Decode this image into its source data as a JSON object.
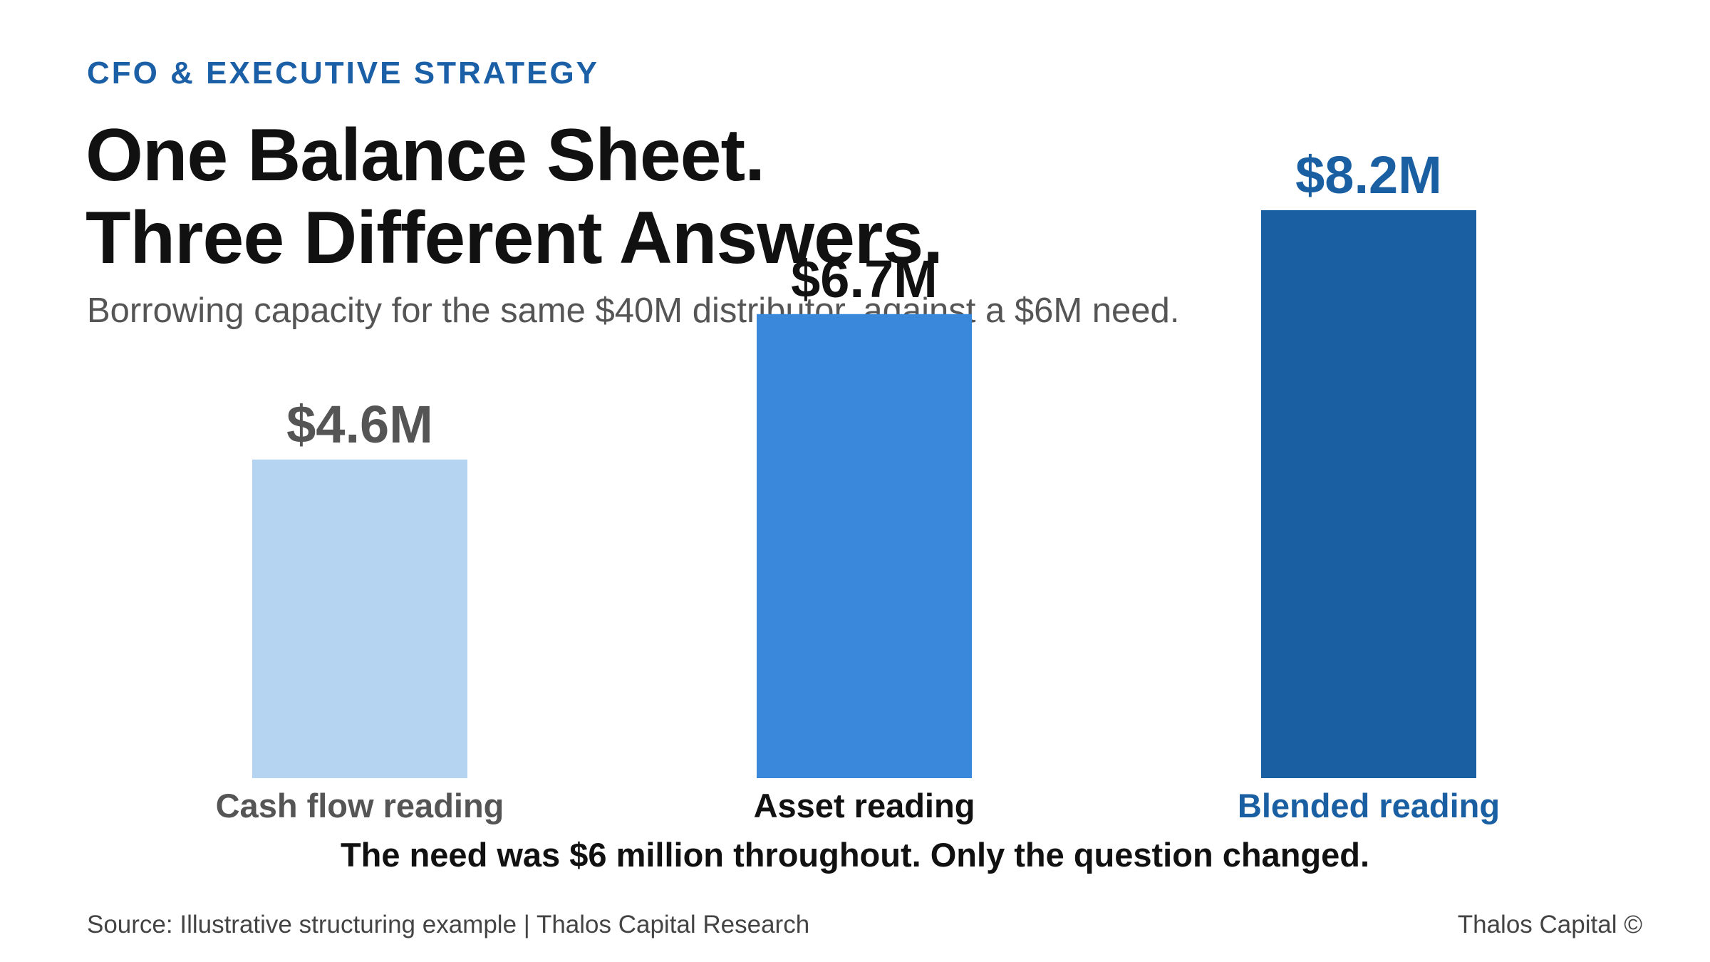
{
  "header": {
    "eyebrow": "CFO & EXECUTIVE STRATEGY",
    "title_line1": "One Balance Sheet.",
    "title_line2": "Three Different Answers.",
    "subtitle": "Borrowing capacity for the same $40M distributor, against a $6M need."
  },
  "chart_data": {
    "type": "bar",
    "title": "One Balance Sheet. Three Different Answers.",
    "subtitle": "Borrowing capacity for the same $40M distributor, against a $6M need.",
    "categories": [
      "Cash flow reading",
      "Asset reading",
      "Blended reading"
    ],
    "values": [
      4.6,
      6.7,
      8.2
    ],
    "value_labels": [
      "$4.6M",
      "$6.7M",
      "$8.2M"
    ],
    "xlabel": "",
    "ylabel": "",
    "ylim": [
      0,
      9
    ],
    "grid": false,
    "legend": "none",
    "colors": {
      "bars": [
        "#b5d4f2",
        "#3a88dc",
        "#1b5fa3"
      ],
      "value_labels": [
        "#555555",
        "#111111",
        "#1b5fa3"
      ],
      "category_labels": [
        "#555555",
        "#111111",
        "#1b5fa3"
      ]
    },
    "annotation": "The need was $6 million throughout. Only the question changed."
  },
  "footer": {
    "source": "Source: Illustrative structuring example | Thalos Capital Research",
    "brand": "Thalos Capital ©"
  }
}
